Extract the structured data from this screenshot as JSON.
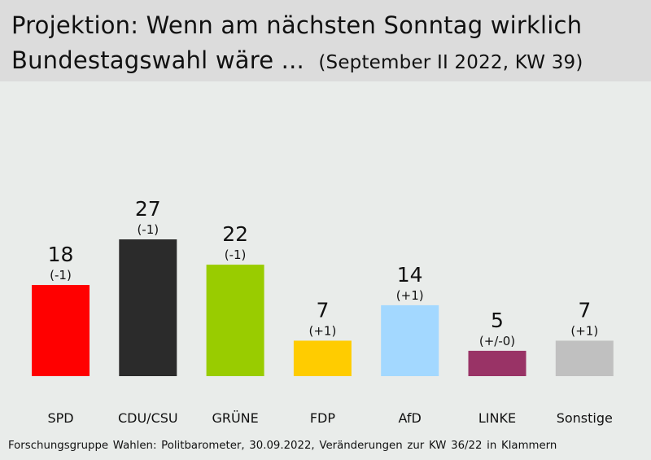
{
  "header": {
    "title_line1": "Projektion: Wenn am nächsten Sonntag wirklich",
    "title_line2": "Bundestagswahl wäre ...",
    "subtitle": "(September II 2022, KW 39)"
  },
  "source": "Forschungsgruppe Wahlen: Politbarometer, 30.09.2022, Veränderungen zur KW 36/22 in Klammern",
  "chart_data": {
    "type": "bar",
    "categories": [
      "SPD",
      "CDU/CSU",
      "GRÜNE",
      "FDP",
      "AfD",
      "LINKE",
      "Sonstige"
    ],
    "values": [
      18,
      27,
      22,
      7,
      14,
      5,
      7
    ],
    "changes": [
      "(-1)",
      "(-1)",
      "(-1)",
      "(+1)",
      "(+1)",
      "(+/-0)",
      "(+1)"
    ],
    "colors": [
      "#ff0000",
      "#2b2b2b",
      "#99cc00",
      "#ffcc00",
      "#a3d8ff",
      "#993366",
      "#c0c0c0"
    ],
    "ylim": [
      0,
      27
    ],
    "grid": false,
    "legend": "none"
  }
}
